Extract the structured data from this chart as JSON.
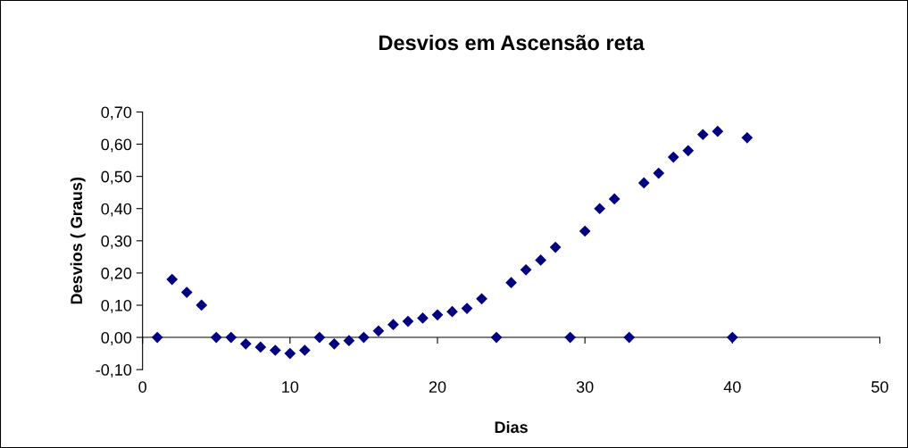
{
  "chart_data": {
    "type": "scatter",
    "title": "Desvios em Ascensão reta",
    "xlabel": "Dias",
    "ylabel": "Desvios ( Graus)",
    "x": [
      1,
      2,
      3,
      4,
      5,
      6,
      7,
      8,
      9,
      10,
      11,
      12,
      13,
      14,
      15,
      16,
      17,
      18,
      19,
      20,
      21,
      22,
      23,
      24,
      25,
      26,
      27,
      28,
      29,
      30,
      31,
      32,
      33,
      34,
      35,
      36,
      37,
      38,
      39,
      40,
      41
    ],
    "series": [
      {
        "color": "#000080",
        "values": [
          0,
          0.18,
          0.14,
          0.1,
          0,
          0,
          -0.02,
          -0.03,
          -0.04,
          -0.05,
          -0.04,
          0,
          -0.02,
          -0.01,
          0,
          0.02,
          0.04,
          0.05,
          0.06,
          0.07,
          0.08,
          0.09,
          0.12,
          0,
          0.17,
          0.21,
          0.24,
          0.28,
          0,
          0.33,
          0.4,
          0.43,
          0,
          0.48,
          0.51,
          0.56,
          0.58,
          0.63,
          0.64,
          0,
          0.62
        ]
      }
    ],
    "xlim": [
      0,
      50
    ],
    "xticks": [
      0,
      10,
      20,
      30,
      40,
      50
    ],
    "ylim": [
      -0.1,
      0.7
    ],
    "yticks": [
      {
        "value": -0.1,
        "label": "-0,10"
      },
      {
        "value": 0,
        "label": "0,00"
      },
      {
        "value": 0.1,
        "label": "0,10"
      },
      {
        "value": 0.2,
        "label": "0,20"
      },
      {
        "value": 0.3,
        "label": "0,30"
      },
      {
        "value": 0.4,
        "label": "0,40"
      },
      {
        "value": 0.5,
        "label": "0,50"
      },
      {
        "value": 0.6,
        "label": "0,60"
      },
      {
        "value": 0.7,
        "label": "0,70"
      }
    ],
    "marker": "diamond",
    "legend": false
  }
}
